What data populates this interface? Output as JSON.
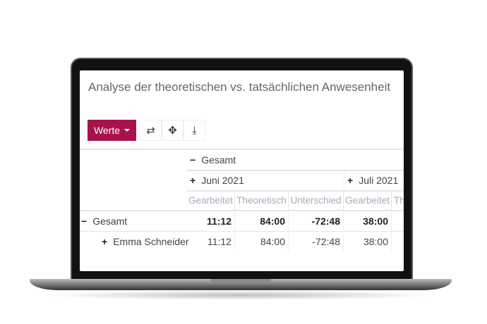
{
  "title": "Analyse der theoretischen vs. tatsächlichen Anwesenheit",
  "toolbar": {
    "werte_label": "Werte",
    "flip_icon": "⇄",
    "move_icon": "✥",
    "download_icon": "⤓"
  },
  "header": {
    "total": "Gesamt",
    "months": [
      "Juni 2021",
      "Juli 2021"
    ],
    "measures": [
      "Gearbeitet",
      "Theoretisch",
      "Unterschied",
      "Gearbeitet",
      "Th"
    ]
  },
  "rows": [
    {
      "label": "Gesamt",
      "values": [
        "11:12",
        "84:00",
        "-72:48",
        "38:00"
      ]
    },
    {
      "label": "Emma Schneider",
      "values": [
        "11:12",
        "84:00",
        "-72:48",
        "38:00"
      ]
    }
  ],
  "colors": {
    "accent": "#a8124c"
  }
}
